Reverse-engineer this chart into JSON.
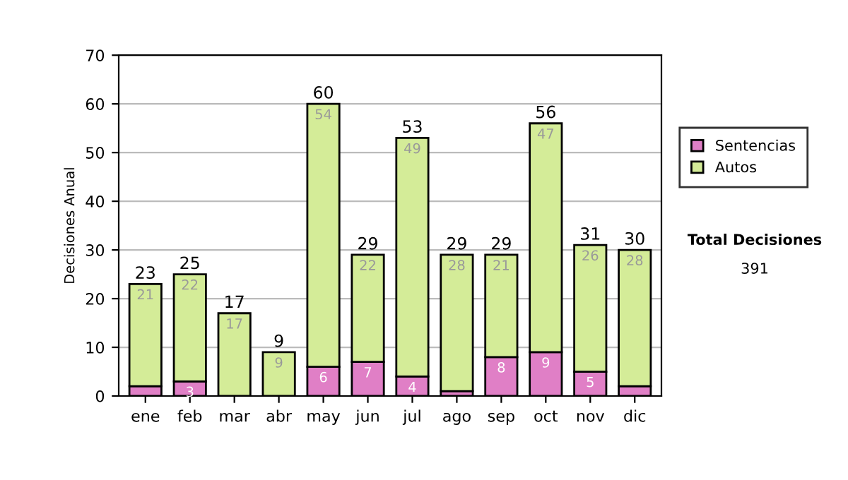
{
  "chart_data": {
    "type": "bar",
    "stacked": true,
    "ylabel": "Decisiones Anual",
    "categories": [
      "ene",
      "feb",
      "mar",
      "abr",
      "may",
      "jun",
      "jul",
      "ago",
      "sep",
      "oct",
      "nov",
      "dic"
    ],
    "series": [
      {
        "name": "Sentencias",
        "color": "#e07fc6",
        "values": [
          2,
          3,
          0,
          0,
          6,
          7,
          4,
          1,
          8,
          9,
          5,
          2
        ],
        "value_labels": [
          null,
          "3",
          null,
          null,
          "6",
          "7",
          "4",
          null,
          "8",
          "9",
          "5",
          null
        ]
      },
      {
        "name": "Autos",
        "color": "#d4ec98",
        "values": [
          21,
          22,
          17,
          9,
          54,
          22,
          49,
          28,
          21,
          47,
          26,
          28
        ],
        "value_labels": [
          "21",
          "22",
          "17",
          "9",
          "54",
          "22",
          "49",
          "28",
          "21",
          "47",
          "26",
          "28"
        ]
      }
    ],
    "totals": [
      "23",
      "25",
      "17",
      "9",
      "60",
      "29",
      "53",
      "29",
      "29",
      "56",
      "31",
      "30"
    ],
    "ylim": [
      0,
      70
    ],
    "yticks": [
      0,
      10,
      20,
      30,
      40,
      50,
      60,
      70
    ],
    "grid": "y",
    "legend": "right",
    "annotations": [
      "Total Decisiones",
      "391"
    ]
  }
}
